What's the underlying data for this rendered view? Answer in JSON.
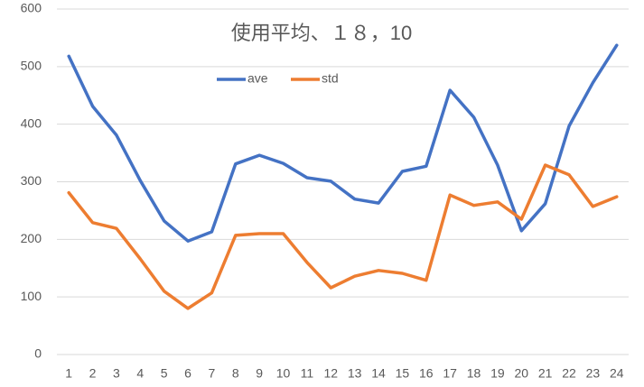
{
  "chart_data": {
    "type": "line",
    "title": "使用平均、１８，10",
    "categories": [
      "1",
      "2",
      "3",
      "4",
      "5",
      "6",
      "7",
      "8",
      "9",
      "10",
      "11",
      "12",
      "13",
      "14",
      "15",
      "16",
      "17",
      "18",
      "19",
      "20",
      "21",
      "22",
      "23",
      "24"
    ],
    "series": [
      {
        "name": "ave",
        "color": "#4472c4",
        "values": [
          518,
          431,
          381,
          302,
          232,
          197,
          213,
          331,
          346,
          332,
          307,
          301,
          270,
          263,
          318,
          327,
          459,
          412,
          329,
          215,
          262,
          397,
          472,
          537
        ]
      },
      {
        "name": "std",
        "color": "#ed7d31",
        "values": [
          281,
          229,
          219,
          166,
          110,
          80,
          107,
          207,
          210,
          210,
          160,
          116,
          136,
          146,
          141,
          129,
          277,
          259,
          265,
          235,
          329,
          312,
          257,
          274
        ]
      }
    ],
    "ylim": [
      0,
      600
    ],
    "yticks": [
      0,
      100,
      200,
      300,
      400,
      500,
      600
    ],
    "grid": true
  }
}
